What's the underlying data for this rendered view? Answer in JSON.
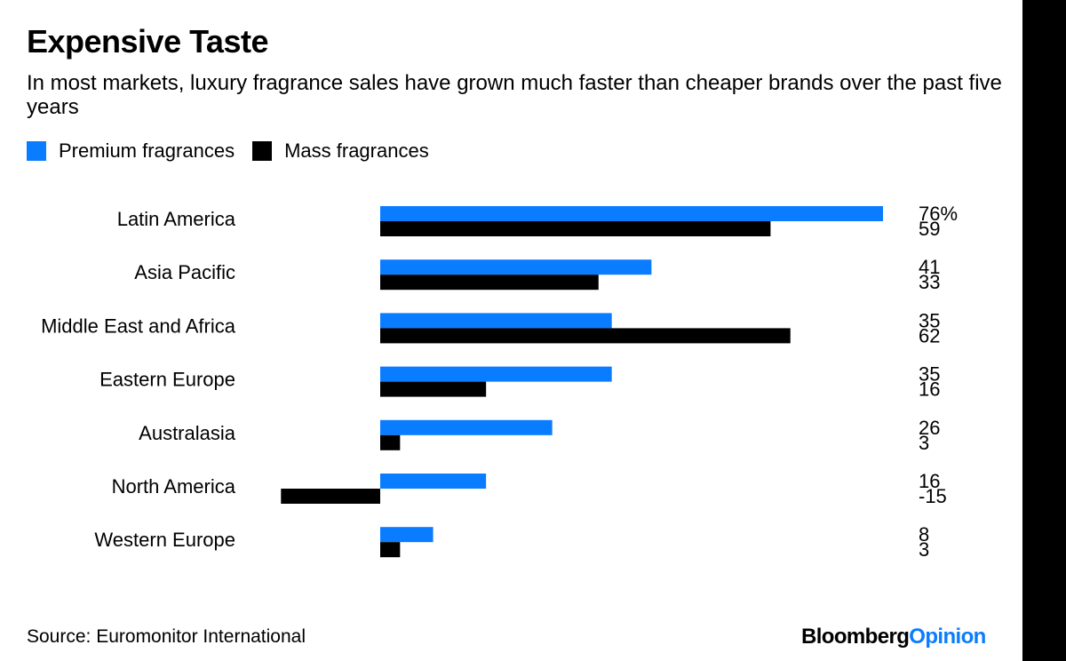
{
  "header": {
    "title": "Expensive Taste",
    "subtitle": "In most markets, luxury fragrance sales have grown much faster than cheaper brands over the past five years"
  },
  "colors": {
    "premium": "#0a7cff",
    "mass": "#000000"
  },
  "chart_data": {
    "type": "bar",
    "orientation": "horizontal",
    "title": "Expensive Taste",
    "subtitle": "In most markets, luxury fragrance sales have grown much faster than cheaper brands over the past five years",
    "xlabel": "",
    "ylabel": "",
    "unit": "%",
    "grid": false,
    "legend_position": "top-left",
    "categories": [
      "Latin America",
      "Asia Pacific",
      "Middle East and Africa",
      "Eastern Europe",
      "Australasia",
      "North America",
      "Western Europe"
    ],
    "series": [
      {
        "name": "Premium fragrances",
        "color": "#0a7cff",
        "values": [
          76,
          41,
          35,
          35,
          26,
          16,
          8
        ],
        "labels": [
          "76%",
          "41",
          "35",
          "35",
          "26",
          "16",
          "8"
        ]
      },
      {
        "name": "Mass fragrances",
        "color": "#000000",
        "values": [
          59,
          33,
          62,
          16,
          3,
          -15,
          3
        ],
        "labels": [
          "59",
          "33",
          "62",
          "16",
          "3",
          "-15",
          "3"
        ]
      }
    ]
  },
  "footer": {
    "source": "Source: Euromonitor International",
    "brand_main": "Bloomberg",
    "brand_accent": "Opinion"
  }
}
